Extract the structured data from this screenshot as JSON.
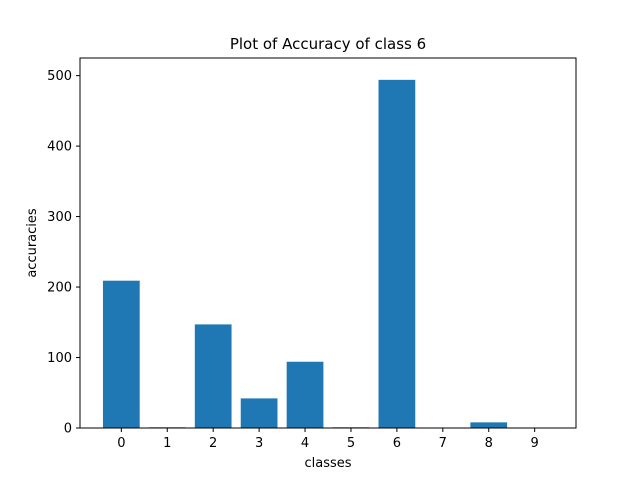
{
  "chart_data": {
    "type": "bar",
    "title": "Plot of Accuracy of class 6",
    "xlabel": "classes",
    "ylabel": "accuracies",
    "categories": [
      "0",
      "1",
      "2",
      "3",
      "4",
      "5",
      "6",
      "7",
      "8",
      "9"
    ],
    "values": [
      209,
      1,
      147,
      42,
      94,
      1,
      494,
      0,
      8,
      0
    ],
    "ylim": [
      0,
      525
    ],
    "yticks": [
      0,
      100,
      200,
      300,
      400,
      500
    ],
    "bar_color": "#1f77b4",
    "grid": false,
    "legend": "none"
  }
}
